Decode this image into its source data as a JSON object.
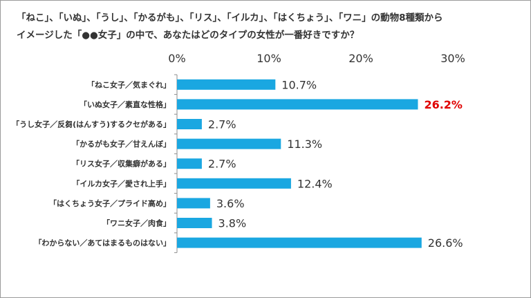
{
  "question": {
    "line1": "「ねこ」、「いぬ」、「うし」、「かるがも」、「リス」、「イルカ」、「はくちょう」、「ワニ」の動物8種類から",
    "line2": "イメージした「●●女子」の中で、あなたはどのタイプの女性が一番好きですか？"
  },
  "chart_data": {
    "type": "bar",
    "orientation": "horizontal",
    "categories": [
      "「ねこ女子／気まぐれ」",
      "「いぬ女子／素直な性格」",
      "「うし女子／反芻(はんすう)するクセがある」",
      "「かるがも女子／甘えんぼ」",
      "「リス女子／収集癖がある」",
      "「イルカ女子／愛され上手」",
      "「はくちょう女子／プライド高め」",
      "「ワニ女子／肉食」",
      "「わからない／あてはまるものはない」"
    ],
    "values": [
      10.7,
      26.2,
      2.7,
      11.3,
      2.7,
      12.4,
      3.6,
      3.8,
      26.6
    ],
    "value_labels": [
      "10.7%",
      "26.2%",
      "2.7%",
      "11.3%",
      "2.7%",
      "12.4%",
      "3.6%",
      "3.8%",
      "26.6%"
    ],
    "highlight_index": 1,
    "xlim": [
      0,
      30
    ],
    "xticks": [
      "0%",
      "10%",
      "20%",
      "30%"
    ],
    "bar_color": "#1aa7e1",
    "highlight_color": "#e00000",
    "grid": false
  }
}
